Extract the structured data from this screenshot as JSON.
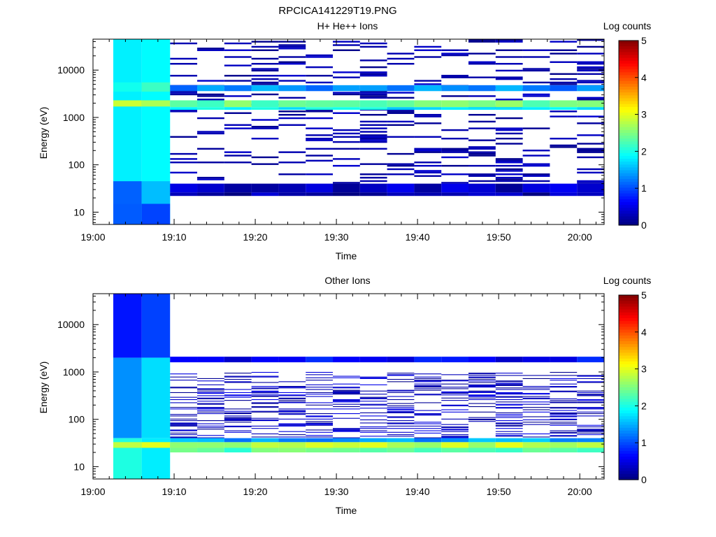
{
  "figure_title": "RPCICA141229T19.PNG",
  "colors": {
    "axis": "#000000",
    "background": "#ffffff",
    "colormap": "jet"
  },
  "chart_data": [
    {
      "type": "heatmap",
      "title": "H+ He++ Ions",
      "xlabel": "Time",
      "ylabel": "Energy (eV)",
      "colorbar_label": "Log counts",
      "colorbar_ticks": [
        "0",
        "1",
        "2",
        "3",
        "4",
        "5"
      ],
      "clim": [
        0,
        5
      ],
      "x_ticks": [
        "19:00",
        "19:10",
        "19:20",
        "19:30",
        "19:40",
        "19:50",
        "20:00"
      ],
      "y_ticks": [
        "10",
        "100",
        "1000",
        "10000"
      ],
      "y_scale": "log",
      "xlim_minutes_after_1900": [
        0,
        63
      ],
      "ylim": [
        5.5,
        45000
      ],
      "legend": "colorbar-right",
      "bands": [
        {
          "t": [
            2.5,
            9.5
          ],
          "e": [
            5.5,
            45000
          ],
          "v": 1.75
        },
        {
          "t": [
            2.5,
            9.5
          ],
          "e": [
            5.5,
            15
          ],
          "v": 1.15
        },
        {
          "t": [
            2.5,
            9.5
          ],
          "e": [
            15,
            45
          ],
          "v": 1.35
        },
        {
          "t": [
            2.5,
            9.5
          ],
          "e": [
            1700,
            2300
          ],
          "v": 2.7
        },
        {
          "t": [
            2.5,
            9.5
          ],
          "e": [
            3500,
            5500
          ],
          "v": 2.2
        },
        {
          "t": [
            9.5,
            63
          ],
          "e": [
            1650,
            2300
          ],
          "v": 2.4
        },
        {
          "t": [
            9.5,
            63
          ],
          "e": [
            1450,
            1650
          ],
          "v": 1.8
        },
        {
          "t": [
            9.5,
            63
          ],
          "e": [
            3600,
            4800
          ],
          "v": 1.3
        },
        {
          "t": [
            9.5,
            63
          ],
          "e": [
            26,
            40
          ],
          "v": 0.35
        },
        {
          "t": [
            9.5,
            63
          ],
          "e": [
            22,
            26
          ],
          "v": 0.2
        }
      ],
      "sparse": {
        "t": [
          9.5,
          63
        ],
        "e": [
          40,
          45000
        ],
        "density": 0.22,
        "v": [
          0.05,
          0.4
        ]
      }
    },
    {
      "type": "heatmap",
      "title": "Other Ions",
      "xlabel": "Time",
      "ylabel": "Energy (eV)",
      "colorbar_label": "Log counts",
      "colorbar_ticks": [
        "0",
        "1",
        "2",
        "3",
        "4",
        "5"
      ],
      "clim": [
        0,
        5
      ],
      "x_ticks": [
        "19:00",
        "19:10",
        "19:20",
        "19:30",
        "19:40",
        "19:50",
        "20:00"
      ],
      "y_ticks": [
        "10",
        "100",
        "1000",
        "10000"
      ],
      "y_scale": "log",
      "xlim_minutes_after_1900": [
        0,
        63
      ],
      "ylim": [
        5.5,
        45000
      ],
      "legend": "colorbar-right",
      "bands": [
        {
          "t": [
            2.5,
            9.5
          ],
          "e": [
            2000,
            45000
          ],
          "v": 0.75
        },
        {
          "t": [
            2.5,
            9.5
          ],
          "e": [
            40,
            2000
          ],
          "v": 1.55
        },
        {
          "t": [
            2.5,
            9.5
          ],
          "e": [
            5.5,
            40
          ],
          "v": 1.9
        },
        {
          "t": [
            2.5,
            9.5
          ],
          "e": [
            25,
            33
          ],
          "v": 2.9
        },
        {
          "t": [
            9.5,
            63
          ],
          "e": [
            25,
            33
          ],
          "v": 2.8
        },
        {
          "t": [
            9.5,
            63
          ],
          "e": [
            20,
            25
          ],
          "v": 2.3
        },
        {
          "t": [
            9.5,
            63
          ],
          "e": [
            33,
            40
          ],
          "v": 1.4
        },
        {
          "t": [
            9.5,
            63
          ],
          "e": [
            1600,
            2100
          ],
          "v": 0.6
        }
      ],
      "sparse": {
        "t": [
          9.5,
          63
        ],
        "e": [
          40,
          1000
        ],
        "density": 0.32,
        "v": [
          0.05,
          0.55
        ]
      }
    }
  ]
}
